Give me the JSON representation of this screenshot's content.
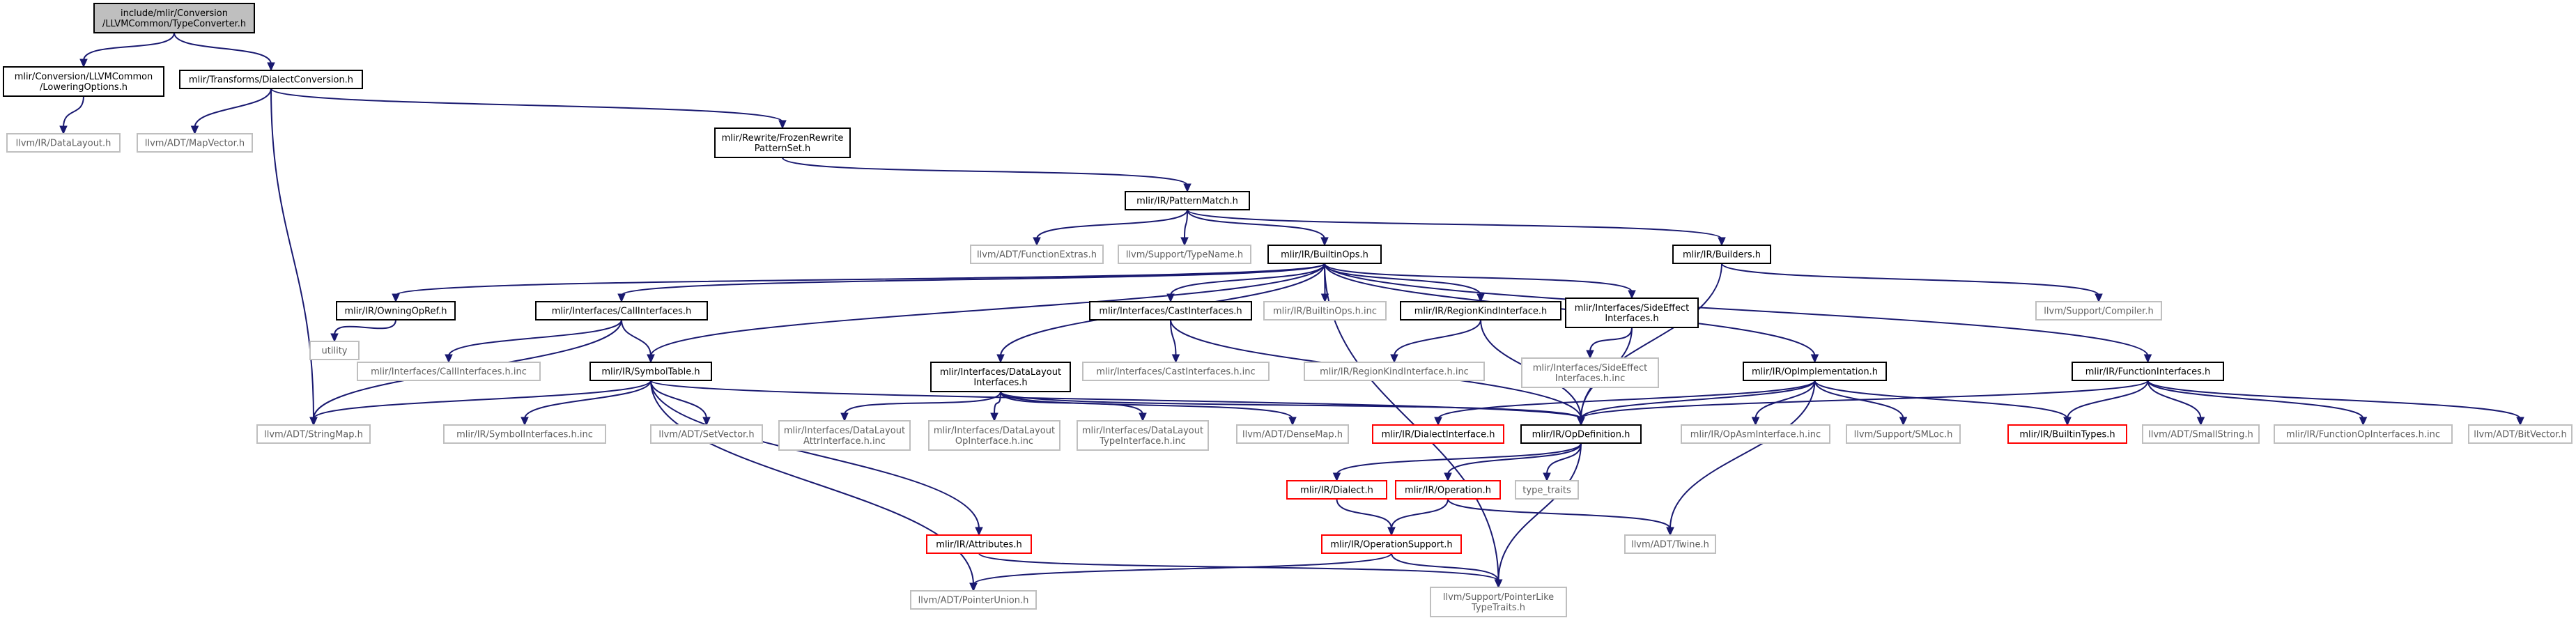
{
  "colors": {
    "edge": "#191970",
    "box_normal": "#000000",
    "box_missing": "#bfbfbf",
    "box_red": "#ff0000",
    "root_fill": "#bfbfbf",
    "text_normal": "#000000",
    "text_missing": "#5f5f5f"
  },
  "nodes": [
    {
      "id": "root",
      "lines": [
        "include/mlir/Conversion",
        "/LLVMCommon/TypeConverter.h"
      ],
      "kind": "root"
    },
    {
      "id": "lowering",
      "lines": [
        "mlir/Conversion/LLVMCommon",
        "/LoweringOptions.h"
      ],
      "kind": "normal"
    },
    {
      "id": "dialectconv",
      "lines": [
        "mlir/Transforms/DialectConversion.h"
      ],
      "kind": "normal"
    },
    {
      "id": "datalayout",
      "lines": [
        "llvm/IR/DataLayout.h"
      ],
      "kind": "missing"
    },
    {
      "id": "mapvector",
      "lines": [
        "llvm/ADT/MapVector.h"
      ],
      "kind": "missing"
    },
    {
      "id": "frozen",
      "lines": [
        "mlir/Rewrite/FrozenRewrite",
        "PatternSet.h"
      ],
      "kind": "normal"
    },
    {
      "id": "patternmatch",
      "lines": [
        "mlir/IR/PatternMatch.h"
      ],
      "kind": "normal"
    },
    {
      "id": "funcextras",
      "lines": [
        "llvm/ADT/FunctionExtras.h"
      ],
      "kind": "missing"
    },
    {
      "id": "typename",
      "lines": [
        "llvm/Support/TypeName.h"
      ],
      "kind": "missing"
    },
    {
      "id": "builtinops",
      "lines": [
        "mlir/IR/BuiltinOps.h"
      ],
      "kind": "normal"
    },
    {
      "id": "builders",
      "lines": [
        "mlir/IR/Builders.h"
      ],
      "kind": "normal"
    },
    {
      "id": "compiler",
      "lines": [
        "llvm/Support/Compiler.h"
      ],
      "kind": "missing"
    },
    {
      "id": "owningopref",
      "lines": [
        "mlir/IR/OwningOpRef.h"
      ],
      "kind": "normal"
    },
    {
      "id": "callifaces",
      "lines": [
        "mlir/Interfaces/CallInterfaces.h"
      ],
      "kind": "normal"
    },
    {
      "id": "castifaces",
      "lines": [
        "mlir/Interfaces/CastInterfaces.h"
      ],
      "kind": "normal"
    },
    {
      "id": "builtinopsinc",
      "lines": [
        "mlir/IR/BuiltinOps.h.inc"
      ],
      "kind": "missing"
    },
    {
      "id": "regionkind",
      "lines": [
        "mlir/IR/RegionKindInterface.h"
      ],
      "kind": "normal"
    },
    {
      "id": "sideeffect",
      "lines": [
        "mlir/Interfaces/SideEffect",
        "Interfaces.h"
      ],
      "kind": "normal"
    },
    {
      "id": "utility",
      "lines": [
        "utility"
      ],
      "kind": "missing"
    },
    {
      "id": "callifacesinc",
      "lines": [
        "mlir/Interfaces/CallInterfaces.h.inc"
      ],
      "kind": "missing"
    },
    {
      "id": "symboltable",
      "lines": [
        "mlir/IR/SymbolTable.h"
      ],
      "kind": "normal"
    },
    {
      "id": "dlifaces",
      "lines": [
        "mlir/Interfaces/DataLayout",
        "Interfaces.h"
      ],
      "kind": "normal"
    },
    {
      "id": "castifacesinc",
      "lines": [
        "mlir/Interfaces/CastInterfaces.h.inc"
      ],
      "kind": "missing"
    },
    {
      "id": "regionkindinc",
      "lines": [
        "mlir/IR/RegionKindInterface.h.inc"
      ],
      "kind": "missing"
    },
    {
      "id": "sideeffectinc",
      "lines": [
        "mlir/Interfaces/SideEffect",
        "Interfaces.h.inc"
      ],
      "kind": "missing"
    },
    {
      "id": "opimpl",
      "lines": [
        "mlir/IR/OpImplementation.h"
      ],
      "kind": "normal"
    },
    {
      "id": "funcifaces",
      "lines": [
        "mlir/IR/FunctionInterfaces.h"
      ],
      "kind": "normal"
    },
    {
      "id": "stringmap",
      "lines": [
        "llvm/ADT/StringMap.h"
      ],
      "kind": "missing"
    },
    {
      "id": "symbolifacesinc",
      "lines": [
        "mlir/IR/SymbolInterfaces.h.inc"
      ],
      "kind": "missing"
    },
    {
      "id": "setvector",
      "lines": [
        "llvm/ADT/SetVector.h"
      ],
      "kind": "missing"
    },
    {
      "id": "dlattrinc",
      "lines": [
        "mlir/Interfaces/DataLayout",
        "AttrInterface.h.inc"
      ],
      "kind": "missing"
    },
    {
      "id": "dlopinc",
      "lines": [
        "mlir/Interfaces/DataLayout",
        "OpInterface.h.inc"
      ],
      "kind": "missing"
    },
    {
      "id": "dltypeinc",
      "lines": [
        "mlir/Interfaces/DataLayout",
        "TypeInterface.h.inc"
      ],
      "kind": "missing"
    },
    {
      "id": "densemap",
      "lines": [
        "llvm/ADT/DenseMap.h"
      ],
      "kind": "missing"
    },
    {
      "id": "dialectiface",
      "lines": [
        "mlir/IR/DialectInterface.h"
      ],
      "kind": "red"
    },
    {
      "id": "opdef",
      "lines": [
        "mlir/IR/OpDefinition.h"
      ],
      "kind": "normal"
    },
    {
      "id": "opasminc",
      "lines": [
        "mlir/IR/OpAsmInterface.h.inc"
      ],
      "kind": "missing"
    },
    {
      "id": "smloc",
      "lines": [
        "llvm/Support/SMLoc.h"
      ],
      "kind": "missing"
    },
    {
      "id": "builtintypes",
      "lines": [
        "mlir/IR/BuiltinTypes.h"
      ],
      "kind": "red"
    },
    {
      "id": "smallstring",
      "lines": [
        "llvm/ADT/SmallString.h"
      ],
      "kind": "missing"
    },
    {
      "id": "funcopinc",
      "lines": [
        "mlir/IR/FunctionOpInterfaces.h.inc"
      ],
      "kind": "missing"
    },
    {
      "id": "bitvector",
      "lines": [
        "llvm/ADT/BitVector.h"
      ],
      "kind": "missing"
    },
    {
      "id": "dialect",
      "lines": [
        "mlir/IR/Dialect.h"
      ],
      "kind": "red"
    },
    {
      "id": "operation",
      "lines": [
        "mlir/IR/Operation.h"
      ],
      "kind": "red"
    },
    {
      "id": "typetraits",
      "lines": [
        "type_traits"
      ],
      "kind": "missing"
    },
    {
      "id": "attributes",
      "lines": [
        "mlir/IR/Attributes.h"
      ],
      "kind": "red"
    },
    {
      "id": "twine",
      "lines": [
        "llvm/ADT/Twine.h"
      ],
      "kind": "missing"
    },
    {
      "id": "opsupport",
      "lines": [
        "mlir/IR/OperationSupport.h"
      ],
      "kind": "red"
    },
    {
      "id": "pointerunion",
      "lines": [
        "llvm/ADT/PointerUnion.h"
      ],
      "kind": "missing"
    },
    {
      "id": "pointerlike",
      "lines": [
        "llvm/Support/PointerLike",
        "TypeTraits.h"
      ],
      "kind": "missing"
    }
  ],
  "edges": [
    [
      "root",
      "lowering"
    ],
    [
      "root",
      "dialectconv"
    ],
    [
      "lowering",
      "datalayout"
    ],
    [
      "dialectconv",
      "mapvector"
    ],
    [
      "dialectconv",
      "frozen"
    ],
    [
      "dialectconv",
      "stringmap"
    ],
    [
      "frozen",
      "patternmatch"
    ],
    [
      "patternmatch",
      "funcextras"
    ],
    [
      "patternmatch",
      "typename"
    ],
    [
      "patternmatch",
      "builtinops"
    ],
    [
      "patternmatch",
      "builders"
    ],
    [
      "builders",
      "compiler"
    ],
    [
      "builders",
      "opdef"
    ],
    [
      "builtinops",
      "owningopref"
    ],
    [
      "builtinops",
      "callifaces"
    ],
    [
      "builtinops",
      "castifaces"
    ],
    [
      "builtinops",
      "builtinopsinc"
    ],
    [
      "builtinops",
      "regionkind"
    ],
    [
      "builtinops",
      "sideeffect"
    ],
    [
      "builtinops",
      "symboltable"
    ],
    [
      "builtinops",
      "dlifaces"
    ],
    [
      "builtinops",
      "opimpl"
    ],
    [
      "builtinops",
      "funcifaces"
    ],
    [
      "builtinops",
      "pointerlike"
    ],
    [
      "owningopref",
      "utility"
    ],
    [
      "callifaces",
      "callifacesinc"
    ],
    [
      "callifaces",
      "symboltable"
    ],
    [
      "callifaces",
      "stringmap"
    ],
    [
      "castifaces",
      "castifacesinc"
    ],
    [
      "castifaces",
      "opdef"
    ],
    [
      "regionkind",
      "regionkindinc"
    ],
    [
      "regionkind",
      "opdef"
    ],
    [
      "sideeffect",
      "sideeffectinc"
    ],
    [
      "sideeffect",
      "opdef"
    ],
    [
      "symboltable",
      "stringmap"
    ],
    [
      "symboltable",
      "symbolifacesinc"
    ],
    [
      "symboltable",
      "setvector"
    ],
    [
      "symboltable",
      "opdef"
    ],
    [
      "symboltable",
      "attributes"
    ],
    [
      "symboltable",
      "pointerunion"
    ],
    [
      "dlifaces",
      "dlattrinc"
    ],
    [
      "dlifaces",
      "dlopinc"
    ],
    [
      "dlifaces",
      "dltypeinc"
    ],
    [
      "dlifaces",
      "densemap"
    ],
    [
      "dlifaces",
      "opdef"
    ],
    [
      "opimpl",
      "dialectiface"
    ],
    [
      "opimpl",
      "opdef"
    ],
    [
      "opimpl",
      "opasminc"
    ],
    [
      "opimpl",
      "smloc"
    ],
    [
      "opimpl",
      "builtintypes"
    ],
    [
      "opimpl",
      "twine"
    ],
    [
      "funcifaces",
      "opdef"
    ],
    [
      "funcifaces",
      "builtintypes"
    ],
    [
      "funcifaces",
      "smallstring"
    ],
    [
      "funcifaces",
      "funcopinc"
    ],
    [
      "funcifaces",
      "bitvector"
    ],
    [
      "opdef",
      "dialect"
    ],
    [
      "opdef",
      "operation"
    ],
    [
      "opdef",
      "typetraits"
    ],
    [
      "opdef",
      "pointerlike"
    ],
    [
      "dialect",
      "opsupport"
    ],
    [
      "operation",
      "opsupport"
    ],
    [
      "operation",
      "twine"
    ],
    [
      "attributes",
      "pointerlike"
    ],
    [
      "opsupport",
      "pointerunion"
    ],
    [
      "opsupport",
      "pointerlike"
    ]
  ]
}
